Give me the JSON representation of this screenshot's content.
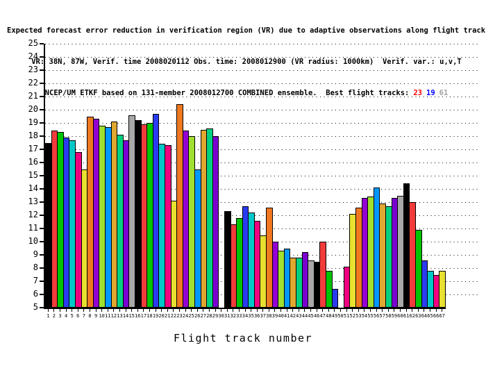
{
  "header": {
    "line1": "Expected forecast error reduction in verification region (VR) due to adaptive observations along flight tracks.",
    "line2": "VR: 38N, 87W, Verif. time 2008020112 Obs. time: 2008012900 (VR radius: 1000km)  Verif. var.: u,v,T",
    "line3_prefix": "NCEP/UM ETKF based on 131-member 2008012700 COMBINED ensemble.  Best flight tracks:",
    "best_tracks": [
      {
        "label": "23",
        "color": "#ff0000"
      },
      {
        "label": "19",
        "color": "#0000ff"
      },
      {
        "label": "61",
        "color": "#a0a0a0"
      }
    ]
  },
  "chart_data": {
    "type": "bar",
    "title": "Expected forecast error reduction in verification region (VR) due to adaptive observations along flight tracks.",
    "subtitle": [
      "VR: 38N, 87W, Verif. time 2008020112 Obs. time: 2008012900 (VR radius: 1000km)  Verif. var.: u,v,T",
      "NCEP/UM ETKF based on 131-member 2008012700 COMBINED ensemble.  Best flight tracks: 23 19 61"
    ],
    "xlabel": "Flight track number",
    "ylabel": "",
    "ylim": [
      5,
      25
    ],
    "ytick_step": 1,
    "grid": "dotted horizontal lines at every integer",
    "legend": "none",
    "categories": [
      1,
      2,
      3,
      4,
      5,
      6,
      7,
      8,
      9,
      10,
      11,
      12,
      13,
      14,
      15,
      16,
      17,
      18,
      19,
      20,
      21,
      22,
      23,
      24,
      25,
      26,
      27,
      28,
      29,
      30,
      31,
      32,
      33,
      34,
      35,
      36,
      37,
      38,
      39,
      40,
      41,
      42,
      43,
      44,
      45,
      46,
      47,
      48,
      49,
      50,
      51,
      52,
      53,
      54,
      55,
      56,
      57,
      58,
      59,
      60,
      61,
      62,
      63,
      64,
      65,
      66,
      67
    ],
    "values": [
      17.5,
      18.4,
      18.3,
      17.9,
      17.7,
      16.8,
      15.5,
      19.5,
      19.3,
      18.8,
      18.7,
      19.1,
      18.1,
      17.7,
      19.6,
      19.2,
      18.9,
      19.0,
      19.7,
      17.4,
      17.3,
      13.1,
      20.4,
      18.4,
      18.0,
      15.5,
      18.5,
      18.6,
      18.0,
      null,
      12.3,
      11.3,
      11.8,
      12.7,
      12.2,
      11.6,
      10.5,
      12.6,
      10.0,
      9.3,
      9.5,
      8.8,
      8.8,
      9.2,
      8.6,
      8.5,
      10.0,
      7.8,
      6.4,
      null,
      8.1,
      12.1,
      12.6,
      13.3,
      13.4,
      14.1,
      12.9,
      12.7,
      13.3,
      13.5,
      14.4,
      13.0,
      10.9,
      8.6,
      7.8,
      7.5,
      7.8
    ],
    "palette": [
      "#000000",
      "#f23b3b",
      "#00c400",
      "#2a3cf0",
      "#00c8c8",
      "#f00080",
      "#e8e030",
      "#f07820",
      "#9400d3",
      "#a0e030",
      "#0098ff",
      "#e0a830",
      "#00d080",
      "#7a00d0",
      "#a8a8a8"
    ],
    "palette_note": "bar color = palette[(track-1) mod 15]; tracks 30 and 50 have no visible bar"
  }
}
